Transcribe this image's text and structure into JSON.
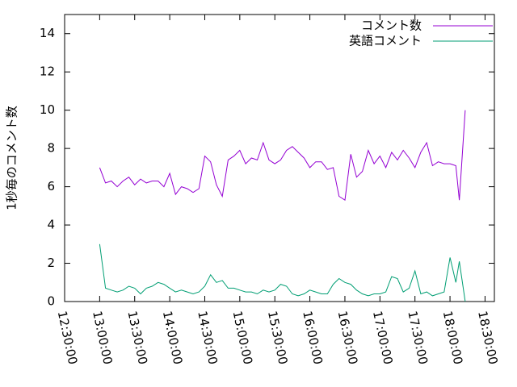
{
  "chart_data": {
    "type": "line",
    "y_label": "1秒毎のコメント数",
    "x": [
      "13:00:00",
      "13:05:00",
      "13:10:00",
      "13:15:00",
      "13:20:00",
      "13:25:00",
      "13:30:00",
      "13:35:00",
      "13:40:00",
      "13:45:00",
      "13:50:00",
      "13:55:00",
      "14:00:00",
      "14:05:00",
      "14:10:00",
      "14:15:00",
      "14:20:00",
      "14:25:00",
      "14:30:00",
      "14:35:00",
      "14:40:00",
      "14:45:00",
      "14:50:00",
      "14:55:00",
      "15:00:00",
      "15:05:00",
      "15:10:00",
      "15:15:00",
      "15:20:00",
      "15:25:00",
      "15:30:00",
      "15:35:00",
      "15:40:00",
      "15:45:00",
      "15:50:00",
      "15:55:00",
      "16:00:00",
      "16:05:00",
      "16:10:00",
      "16:15:00",
      "16:20:00",
      "16:25:00",
      "16:30:00",
      "16:35:00",
      "16:40:00",
      "16:45:00",
      "16:50:00",
      "16:55:00",
      "17:00:00",
      "17:05:00",
      "17:10:00",
      "17:15:00",
      "17:20:00",
      "17:25:00",
      "17:30:00",
      "17:35:00",
      "17:40:00",
      "17:45:00",
      "17:50:00",
      "17:55:00",
      "18:00:00",
      "18:05:00",
      "18:08:00",
      "18:13:00"
    ],
    "series": [
      {
        "name": "コメント数",
        "color": "#9400d3",
        "values": [
          7.0,
          6.2,
          6.3,
          6.0,
          6.3,
          6.5,
          6.1,
          6.4,
          6.2,
          6.3,
          6.3,
          6.0,
          6.7,
          5.6,
          6.0,
          5.9,
          5.7,
          5.9,
          7.6,
          7.3,
          6.1,
          5.5,
          7.4,
          7.6,
          7.9,
          7.2,
          7.5,
          7.4,
          8.3,
          7.4,
          7.2,
          7.4,
          7.9,
          8.1,
          7.8,
          7.5,
          7.0,
          7.3,
          7.3,
          6.9,
          7.0,
          5.5,
          5.3,
          7.7,
          6.5,
          6.8,
          7.9,
          7.2,
          7.6,
          7.0,
          7.8,
          7.4,
          7.9,
          7.5,
          7.0,
          7.8,
          8.3,
          7.1,
          7.3,
          7.2,
          7.2,
          7.1,
          5.3,
          10.0
        ]
      },
      {
        "name": "英語コメント",
        "color": "#009e73",
        "values": [
          3.0,
          0.7,
          0.6,
          0.5,
          0.6,
          0.8,
          0.7,
          0.4,
          0.7,
          0.8,
          1.0,
          0.9,
          0.7,
          0.5,
          0.6,
          0.5,
          0.4,
          0.5,
          0.8,
          1.4,
          1.0,
          1.1,
          0.7,
          0.7,
          0.6,
          0.5,
          0.5,
          0.4,
          0.6,
          0.5,
          0.6,
          0.9,
          0.8,
          0.4,
          0.3,
          0.4,
          0.6,
          0.5,
          0.4,
          0.4,
          0.9,
          1.2,
          1.0,
          0.9,
          0.6,
          0.4,
          0.3,
          0.4,
          0.4,
          0.5,
          1.3,
          1.2,
          0.5,
          0.7,
          1.6,
          0.4,
          0.5,
          0.3,
          0.4,
          0.5,
          2.3,
          1.0,
          2.1,
          0.0
        ]
      }
    ],
    "xlim": [
      "12:30:00",
      "18:38:00"
    ],
    "xticks": [
      "12:30:00",
      "13:00:00",
      "13:30:00",
      "14:00:00",
      "14:30:00",
      "15:00:00",
      "15:30:00",
      "16:00:00",
      "16:30:00",
      "17:00:00",
      "17:30:00",
      "18:00:00",
      "18:30:00"
    ],
    "ylim": [
      0,
      15
    ],
    "yticks": [
      0,
      2,
      4,
      6,
      8,
      10,
      12,
      14
    ],
    "legend": "top-right"
  }
}
